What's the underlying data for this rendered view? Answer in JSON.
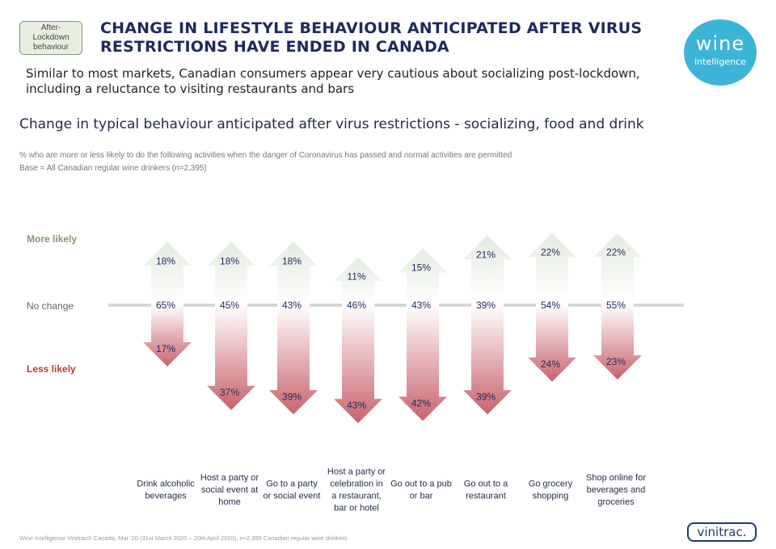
{
  "badge": "After-\nLockdown\nbehaviour",
  "title": "CHANGE IN LIFESTYLE BEHAVIOUR ANTICIPATED AFTER VIRUS RESTRICTIONS HAVE ENDED IN CANADA",
  "logo": {
    "line1": "wine",
    "line2": "intelligence",
    "color": "#3bb4d8"
  },
  "subtitle": "Similar to most markets, Canadian consumers appear very cautious about socializing post-lockdown, including a reluctance to visiting restaurants and bars",
  "footer": "Wine Intelligence Vinitrac® Canada, Mar '20 (31st March 2020 – 20th April 2020), n=2,395 Canadian regular wine drinkers",
  "vinitrac": "vinitrac.",
  "chart_data": {
    "type": "diverging-arrows",
    "title": "Change in typical behaviour anticipated after virus restrictions - socializing, food and drink",
    "note": "% who are more or less likely to do the following activities when the danger of Coronavirus has passed and normal activities are permitted",
    "base": "Base = All Canadian regular wine drinkers (n=2,395)",
    "axis_labels": {
      "more": "More likely",
      "none": "No change",
      "less": "Less likely"
    },
    "colors": {
      "more": "#7a9a6e",
      "less": "#c0392b",
      "none": "#666666",
      "up_arrow": "#e4ebe1",
      "down_arrow": "#c9636b"
    },
    "categories": [
      "Drink alcoholic beverages",
      "Host a party or social event at home",
      "Go to a party or social event",
      "Host a party or celebration in a restaurant, bar or hotel",
      "Go out to a pub or bar",
      "Go out to a restaurant",
      "Go grocery shopping",
      "Shop online for beverages and groceries"
    ],
    "more_likely": [
      "18%",
      "18%",
      "18%",
      "11%",
      "15%",
      "21%",
      "22%",
      "22%"
    ],
    "no_change": [
      "65%",
      "45%",
      "43%",
      "46%",
      "43%",
      "39%",
      "54%",
      "55%"
    ],
    "less_likely": [
      "17%",
      "37%",
      "39%",
      "43%",
      "42%",
      "39%",
      "24%",
      "23%"
    ]
  }
}
